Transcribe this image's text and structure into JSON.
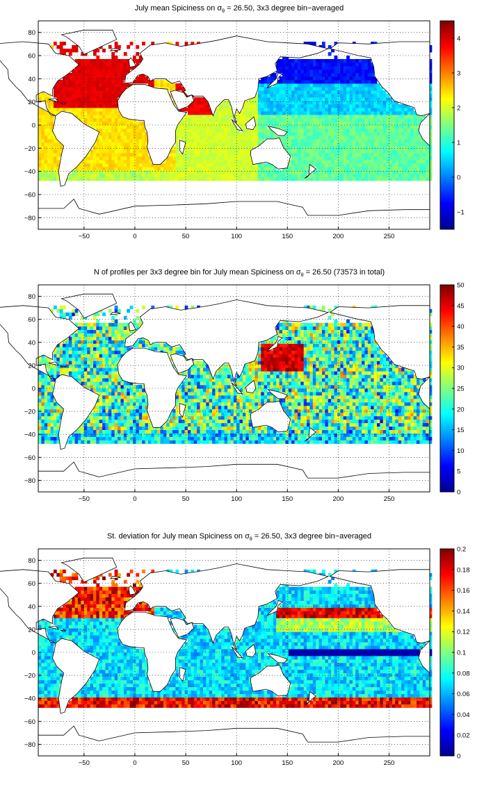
{
  "chart_data": [
    {
      "type": "heatmap",
      "title_prefix": "July mean Spiciness on ",
      "title_sigma": "σ",
      "title_sub": "θ",
      "title_suffix": " = 26.50, 3x3 degree bin−averaged",
      "xticks": [
        "−50",
        "0",
        "50",
        "100",
        "150",
        "200",
        "250"
      ],
      "xtick_values": [
        -50,
        0,
        50,
        100,
        150,
        200,
        250
      ],
      "yticks": [
        "80",
        "60",
        "40",
        "20",
        "0",
        "−20",
        "−40",
        "−60",
        "−80"
      ],
      "ytick_values": [
        80,
        60,
        40,
        20,
        0,
        -20,
        -40,
        -60,
        -80
      ],
      "xlim": [
        -95,
        290
      ],
      "ylim": [
        -90,
        90
      ],
      "colorbar_ticks": [
        "4",
        "3",
        "2",
        "1",
        "0",
        "−1"
      ],
      "colorbar_values": [
        4,
        3,
        2,
        1,
        0,
        -1
      ],
      "clim": [
        -1.5,
        4.5
      ],
      "colormap": "jet",
      "grid": true
    },
    {
      "type": "heatmap",
      "title_prefix": "N of profiles per 3x3 degree bin for July mean Spiciness on ",
      "title_sigma": "σ",
      "title_sub": "θ",
      "title_suffix": " = 26.50 (73573 in total)",
      "xticks": [
        "−50",
        "0",
        "50",
        "100",
        "150",
        "200",
        "250"
      ],
      "xtick_values": [
        -50,
        0,
        50,
        100,
        150,
        200,
        250
      ],
      "yticks": [
        "80",
        "60",
        "40",
        "20",
        "0",
        "−20",
        "−40",
        "−60",
        "−80"
      ],
      "ytick_values": [
        80,
        60,
        40,
        20,
        0,
        -20,
        -40,
        -60,
        -80
      ],
      "xlim": [
        -95,
        290
      ],
      "ylim": [
        -90,
        90
      ],
      "colorbar_ticks": [
        "50",
        "45",
        "40",
        "35",
        "30",
        "25",
        "20",
        "15",
        "10",
        "5",
        "0"
      ],
      "colorbar_values": [
        50,
        45,
        40,
        35,
        30,
        25,
        20,
        15,
        10,
        5,
        0
      ],
      "clim": [
        0,
        50
      ],
      "colormap": "jet",
      "grid": true
    },
    {
      "type": "heatmap",
      "title_prefix": "St. deviation for July mean Spiciness on ",
      "title_sigma": "σ",
      "title_sub": "θ",
      "title_suffix": " = 26.50, 3x3 degree bin−averaged",
      "xticks": [
        "−50",
        "0",
        "50",
        "100",
        "150",
        "200",
        "250"
      ],
      "xtick_values": [
        -50,
        0,
        50,
        100,
        150,
        200,
        250
      ],
      "yticks": [
        "80",
        "60",
        "40",
        "20",
        "0",
        "−20",
        "−40",
        "−60",
        "−80"
      ],
      "ytick_values": [
        80,
        60,
        40,
        20,
        0,
        -20,
        -40,
        -60,
        -80
      ],
      "xlim": [
        -95,
        290
      ],
      "ylim": [
        -90,
        90
      ],
      "colorbar_ticks": [
        "0.2",
        "0.18",
        "0.16",
        "0.14",
        "0.12",
        "0.1",
        "0.08",
        "0.06",
        "0.04",
        "0.02",
        "0"
      ],
      "colorbar_values": [
        0.2,
        0.18,
        0.16,
        0.14,
        0.12,
        0.1,
        0.08,
        0.06,
        0.04,
        0.02,
        0
      ],
      "clim": [
        0,
        0.2
      ],
      "colormap": "jet",
      "grid": true
    }
  ]
}
